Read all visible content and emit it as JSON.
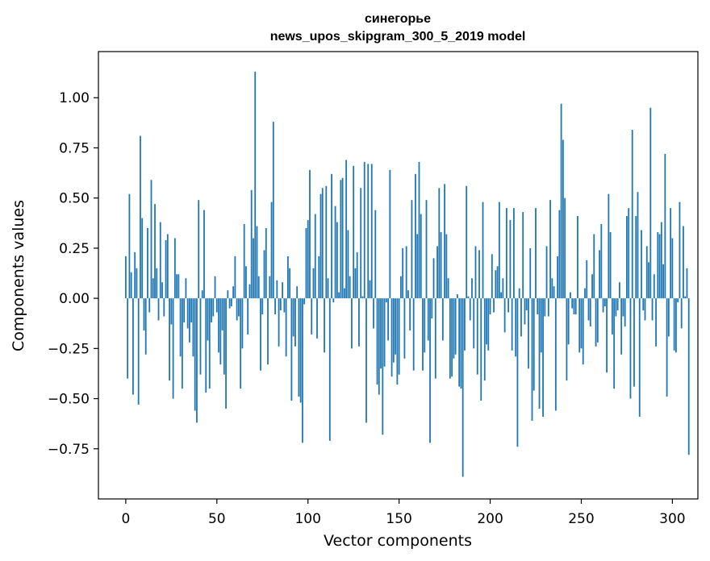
{
  "chart_data": {
    "type": "bar",
    "title": "синегорье",
    "subtitle": "news_upos_skipgram_300_5_2019 model",
    "xlabel": "Vector components",
    "ylabel": "Components values",
    "xlim": [
      -15,
      314
    ],
    "ylim": [
      -1.0,
      1.23
    ],
    "x_ticks": [
      0,
      50,
      100,
      150,
      200,
      250,
      300
    ],
    "y_ticks": [
      -0.75,
      -0.5,
      -0.25,
      0.0,
      0.25,
      0.5,
      0.75,
      1.0
    ],
    "x_tick_labels": [
      "0",
      "50",
      "100",
      "150",
      "200",
      "250",
      "300"
    ],
    "y_tick_labels": [
      "−0.75",
      "−0.50",
      "−0.25",
      "0.00",
      "0.25",
      "0.50",
      "0.75",
      "1.00"
    ],
    "color": "#1f77b4",
    "series": [
      {
        "name": "синегорье",
        "values": [
          0.21,
          -0.4,
          0.52,
          0.13,
          -0.48,
          0.23,
          0.15,
          -0.53,
          0.81,
          0.4,
          -0.16,
          -0.28,
          0.35,
          -0.07,
          0.59,
          0.1,
          0.47,
          0.15,
          -0.11,
          0.38,
          0.08,
          -0.09,
          0.29,
          0.32,
          -0.41,
          -0.13,
          -0.5,
          0.3,
          0.12,
          0.12,
          -0.29,
          -0.45,
          -0.12,
          0.1,
          -0.15,
          -0.22,
          -0.12,
          -0.29,
          -0.56,
          -0.62,
          0.49,
          -0.38,
          0.04,
          0.44,
          -0.47,
          -0.21,
          -0.45,
          -0.12,
          -0.09,
          0.11,
          -0.07,
          -0.27,
          -0.33,
          -0.16,
          -0.38,
          -0.55,
          0.04,
          -0.05,
          -0.04,
          0.06,
          0.21,
          -0.11,
          -0.09,
          -0.45,
          -0.25,
          0.37,
          0.16,
          -0.18,
          0.07,
          0.54,
          0.3,
          1.13,
          0.36,
          0.11,
          -0.36,
          -0.08,
          0.24,
          0.35,
          -0.33,
          0.11,
          0.48,
          0.88,
          -0.08,
          0.09,
          -0.24,
          -0.06,
          0.08,
          -0.07,
          -0.29,
          0.21,
          0.15,
          -0.51,
          -0.19,
          -0.24,
          0.06,
          -0.49,
          -0.52,
          -0.72,
          -0.03,
          0.35,
          0.39,
          0.64,
          -0.18,
          0.15,
          0.42,
          -0.2,
          0.21,
          0.52,
          0.55,
          -0.27,
          0.56,
          0.1,
          -0.71,
          0.62,
          -0.02,
          0.46,
          0.38,
          0.03,
          0.59,
          0.6,
          0.05,
          0.69,
          0.34,
          0.11,
          -0.25,
          0.66,
          0.15,
          0.23,
          -0.24,
          0.55,
          0.01,
          0.68,
          -0.62,
          0.67,
          0.09,
          0.67,
          -0.15,
          0.44,
          -0.43,
          -0.48,
          -0.35,
          -0.68,
          -0.34,
          -0.02,
          -0.21,
          0.64,
          -0.39,
          -0.32,
          -0.28,
          -0.43,
          -0.38,
          0.11,
          0.25,
          -0.3,
          0.26,
          0.04,
          -0.16,
          0.49,
          -0.36,
          0.62,
          0.32,
          0.68,
          0.42,
          -0.36,
          -0.27,
          0.49,
          -0.21,
          -0.72,
          -0.1,
          0.2,
          -0.4,
          0.26,
          0.55,
          0.33,
          -0.21,
          0.57,
          0.32,
          0.1,
          -0.4,
          -0.39,
          -0.3,
          -0.28,
          0.02,
          -0.44,
          -0.45,
          -0.89,
          -0.26,
          0.56,
          0.01,
          -0.11,
          0.1,
          -0.25,
          0.26,
          -0.38,
          0.24,
          -0.51,
          0.48,
          -0.41,
          -0.23,
          -0.26,
          -0.08,
          0.22,
          -0.07,
          0.14,
          0.16,
          0.48,
          0.03,
          0.1,
          -0.17,
          0.45,
          -0.07,
          0.39,
          -0.26,
          0.45,
          -0.29,
          -0.74,
          0.05,
          -0.19,
          0.43,
          -0.13,
          -0.06,
          -0.35,
          0.25,
          -0.61,
          -0.46,
          0.45,
          -0.08,
          -0.55,
          -0.27,
          -0.59,
          -0.09,
          0.26,
          -0.09,
          0.49,
          0.1,
          0.06,
          -0.56,
          0.21,
          0.44,
          0.97,
          0.79,
          0.5,
          -0.41,
          -0.23,
          0.03,
          -0.05,
          -0.08,
          -0.08,
          0.41,
          -0.27,
          -0.25,
          -0.33,
          0.05,
          0.19,
          -0.11,
          -0.14,
          0.12,
          0.32,
          -0.24,
          -0.22,
          0.24,
          0.37,
          -0.07,
          -0.04,
          -0.37,
          0.52,
          0.33,
          -0.18,
          -0.45,
          -0.09,
          -0.06,
          0.08,
          -0.28,
          -0.09,
          -0.14,
          0.41,
          0.45,
          -0.5,
          0.84,
          -0.44,
          0.41,
          0.53,
          -0.59,
          0.34,
          -0.06,
          -0.11,
          0.26,
          0.18,
          0.95,
          -0.11,
          0.12,
          -0.24,
          0.33,
          0.32,
          0.38,
          0.17,
          0.72,
          -0.49,
          -0.19,
          0.45,
          0.3,
          -0.26,
          -0.27,
          -0.02,
          0.48,
          -0.15,
          0.36,
          0.01,
          0.15,
          -0.78
        ]
      }
    ]
  }
}
